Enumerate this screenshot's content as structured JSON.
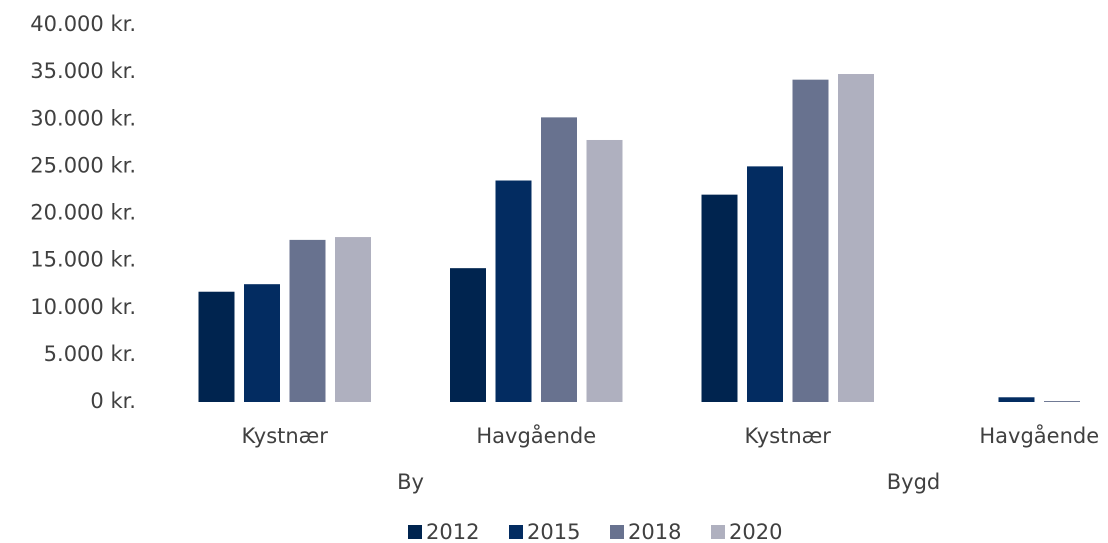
{
  "chart_data": {
    "type": "bar",
    "categories": [
      "Kystnær",
      "Havgående",
      "Kystnær",
      "Havgående"
    ],
    "groups": [
      "By",
      "Bygd"
    ],
    "series": [
      {
        "name": "2012",
        "color": "#00244f",
        "values": [
          11700,
          14200,
          22000,
          0
        ]
      },
      {
        "name": "2015",
        "color": "#032c61",
        "values": [
          12500,
          23500,
          25000,
          500
        ]
      },
      {
        "name": "2018",
        "color": "#68728f",
        "values": [
          17200,
          30200,
          34200,
          100
        ]
      },
      {
        "name": "2020",
        "color": "#afb0bf",
        "values": [
          17500,
          27800,
          34800,
          0
        ]
      }
    ],
    "ylim": [
      0,
      40000
    ],
    "yticks": [
      {
        "value": 0,
        "label": "0 kr."
      },
      {
        "value": 5000,
        "label": "5.000 kr."
      },
      {
        "value": 10000,
        "label": "10.000 kr."
      },
      {
        "value": 15000,
        "label": "15.000 kr."
      },
      {
        "value": 20000,
        "label": "20.000 kr."
      },
      {
        "value": 25000,
        "label": "25.000 kr."
      },
      {
        "value": 30000,
        "label": "30.000 kr."
      },
      {
        "value": 35000,
        "label": "35.000 kr."
      },
      {
        "value": 40000,
        "label": "40.000 kr."
      }
    ],
    "grid": false,
    "legend": "bottom"
  }
}
